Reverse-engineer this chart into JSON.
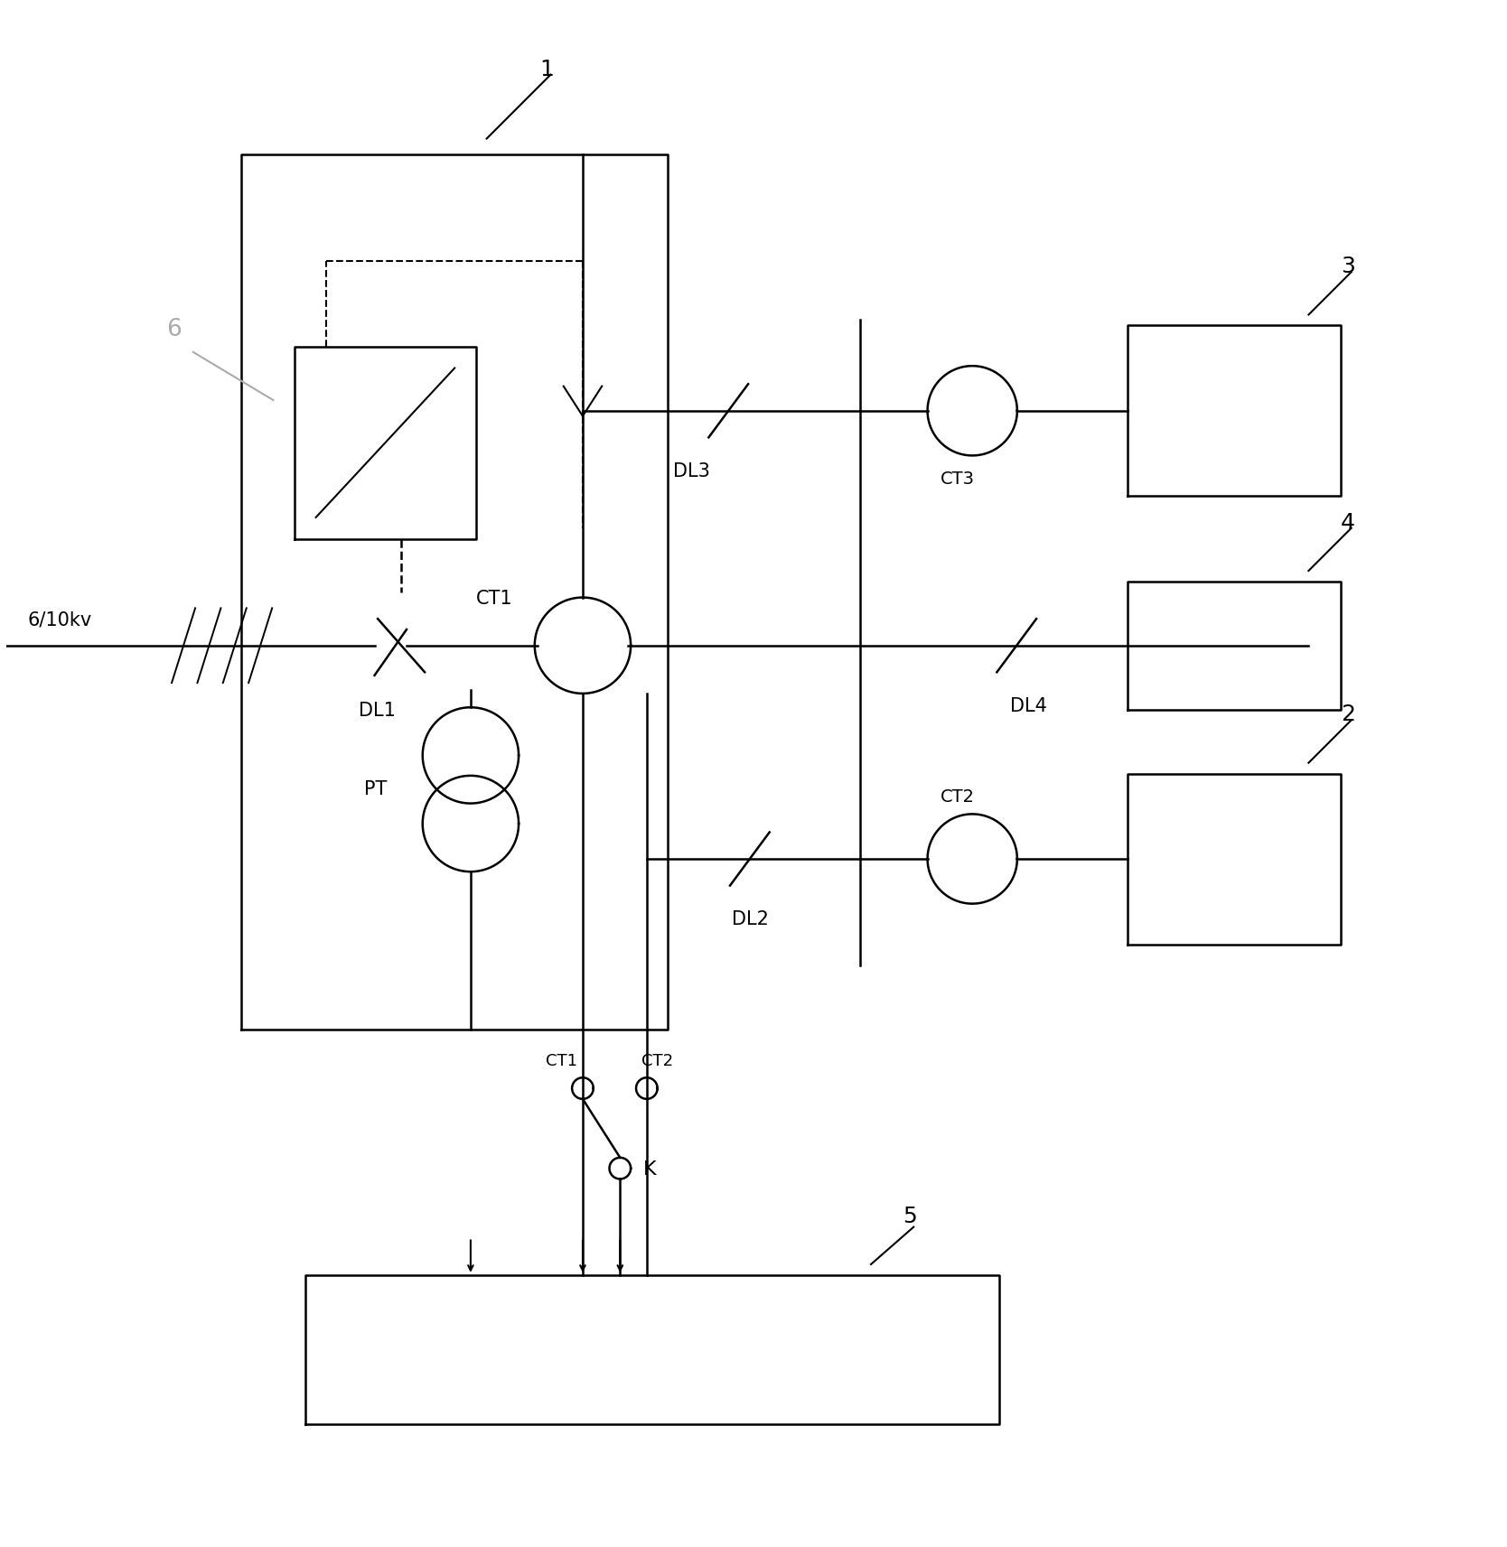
{
  "bg_color": "#ffffff",
  "line_color": "#000000",
  "label_6_color": "#aaaaaa",
  "lw": 1.8,
  "xlim": [
    0,
    14
  ],
  "ylim": [
    -3,
    11
  ]
}
